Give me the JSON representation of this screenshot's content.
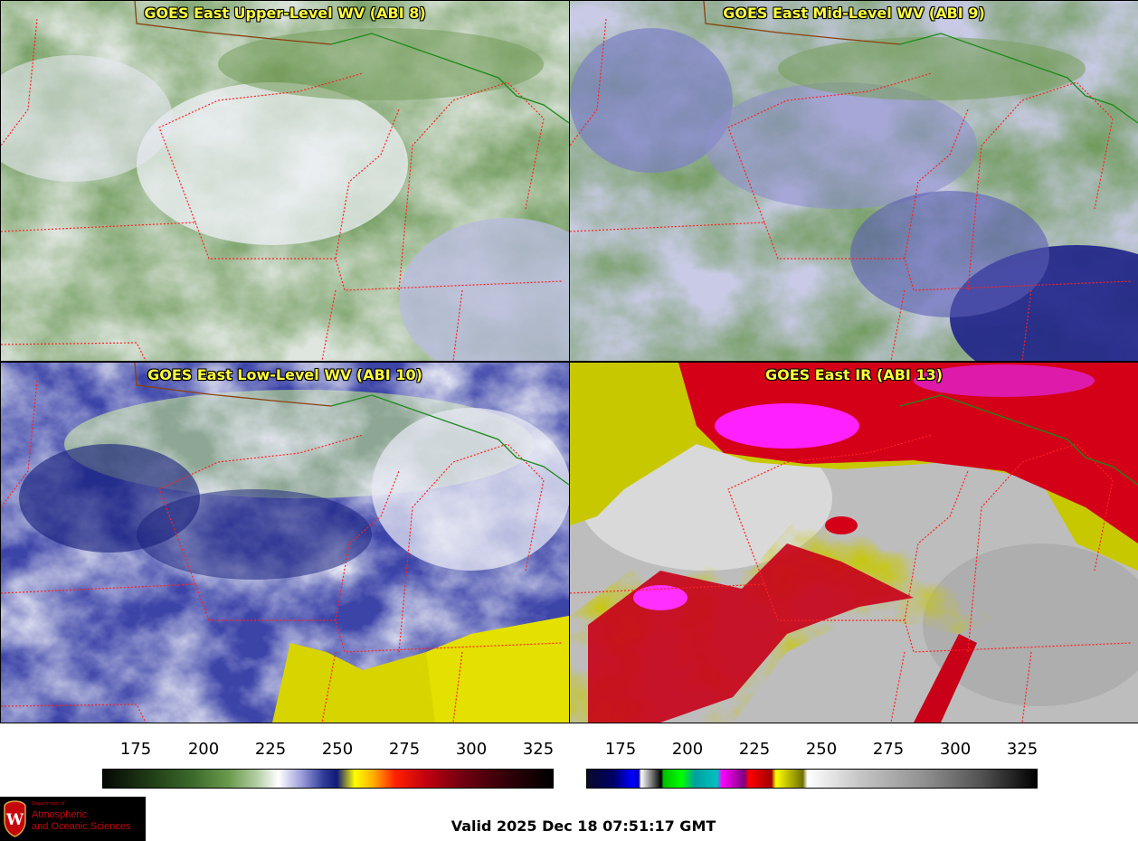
{
  "panels": [
    {
      "id": "upper",
      "title": "GOES East Upper-Level WV (ABI 8)"
    },
    {
      "id": "mid",
      "title": "GOES East Mid-Level WV (ABI 9)"
    },
    {
      "id": "low",
      "title": "GOES East Low-Level WV (ABI 10)"
    },
    {
      "id": "ir",
      "title": "GOES East IR (ABI 13)"
    }
  ],
  "colorbars": {
    "wv": {
      "ticks": [
        "175",
        "200",
        "225",
        "250",
        "275",
        "300",
        "325"
      ]
    },
    "ir": {
      "ticks": [
        "175",
        "200",
        "225",
        "250",
        "275",
        "300",
        "325"
      ]
    }
  },
  "logo": {
    "line0": "Department of",
    "line1": "Atmospheric",
    "line2": "and Oceanic Sciences",
    "icon": "uw-crest-icon"
  },
  "valid_time": "Valid 2025 Dec 18 07:51:17 GMT",
  "colors": {
    "title_yellow": "#ffff3c",
    "border_red": "#ff2020",
    "border_green": "#1a8a1a"
  }
}
